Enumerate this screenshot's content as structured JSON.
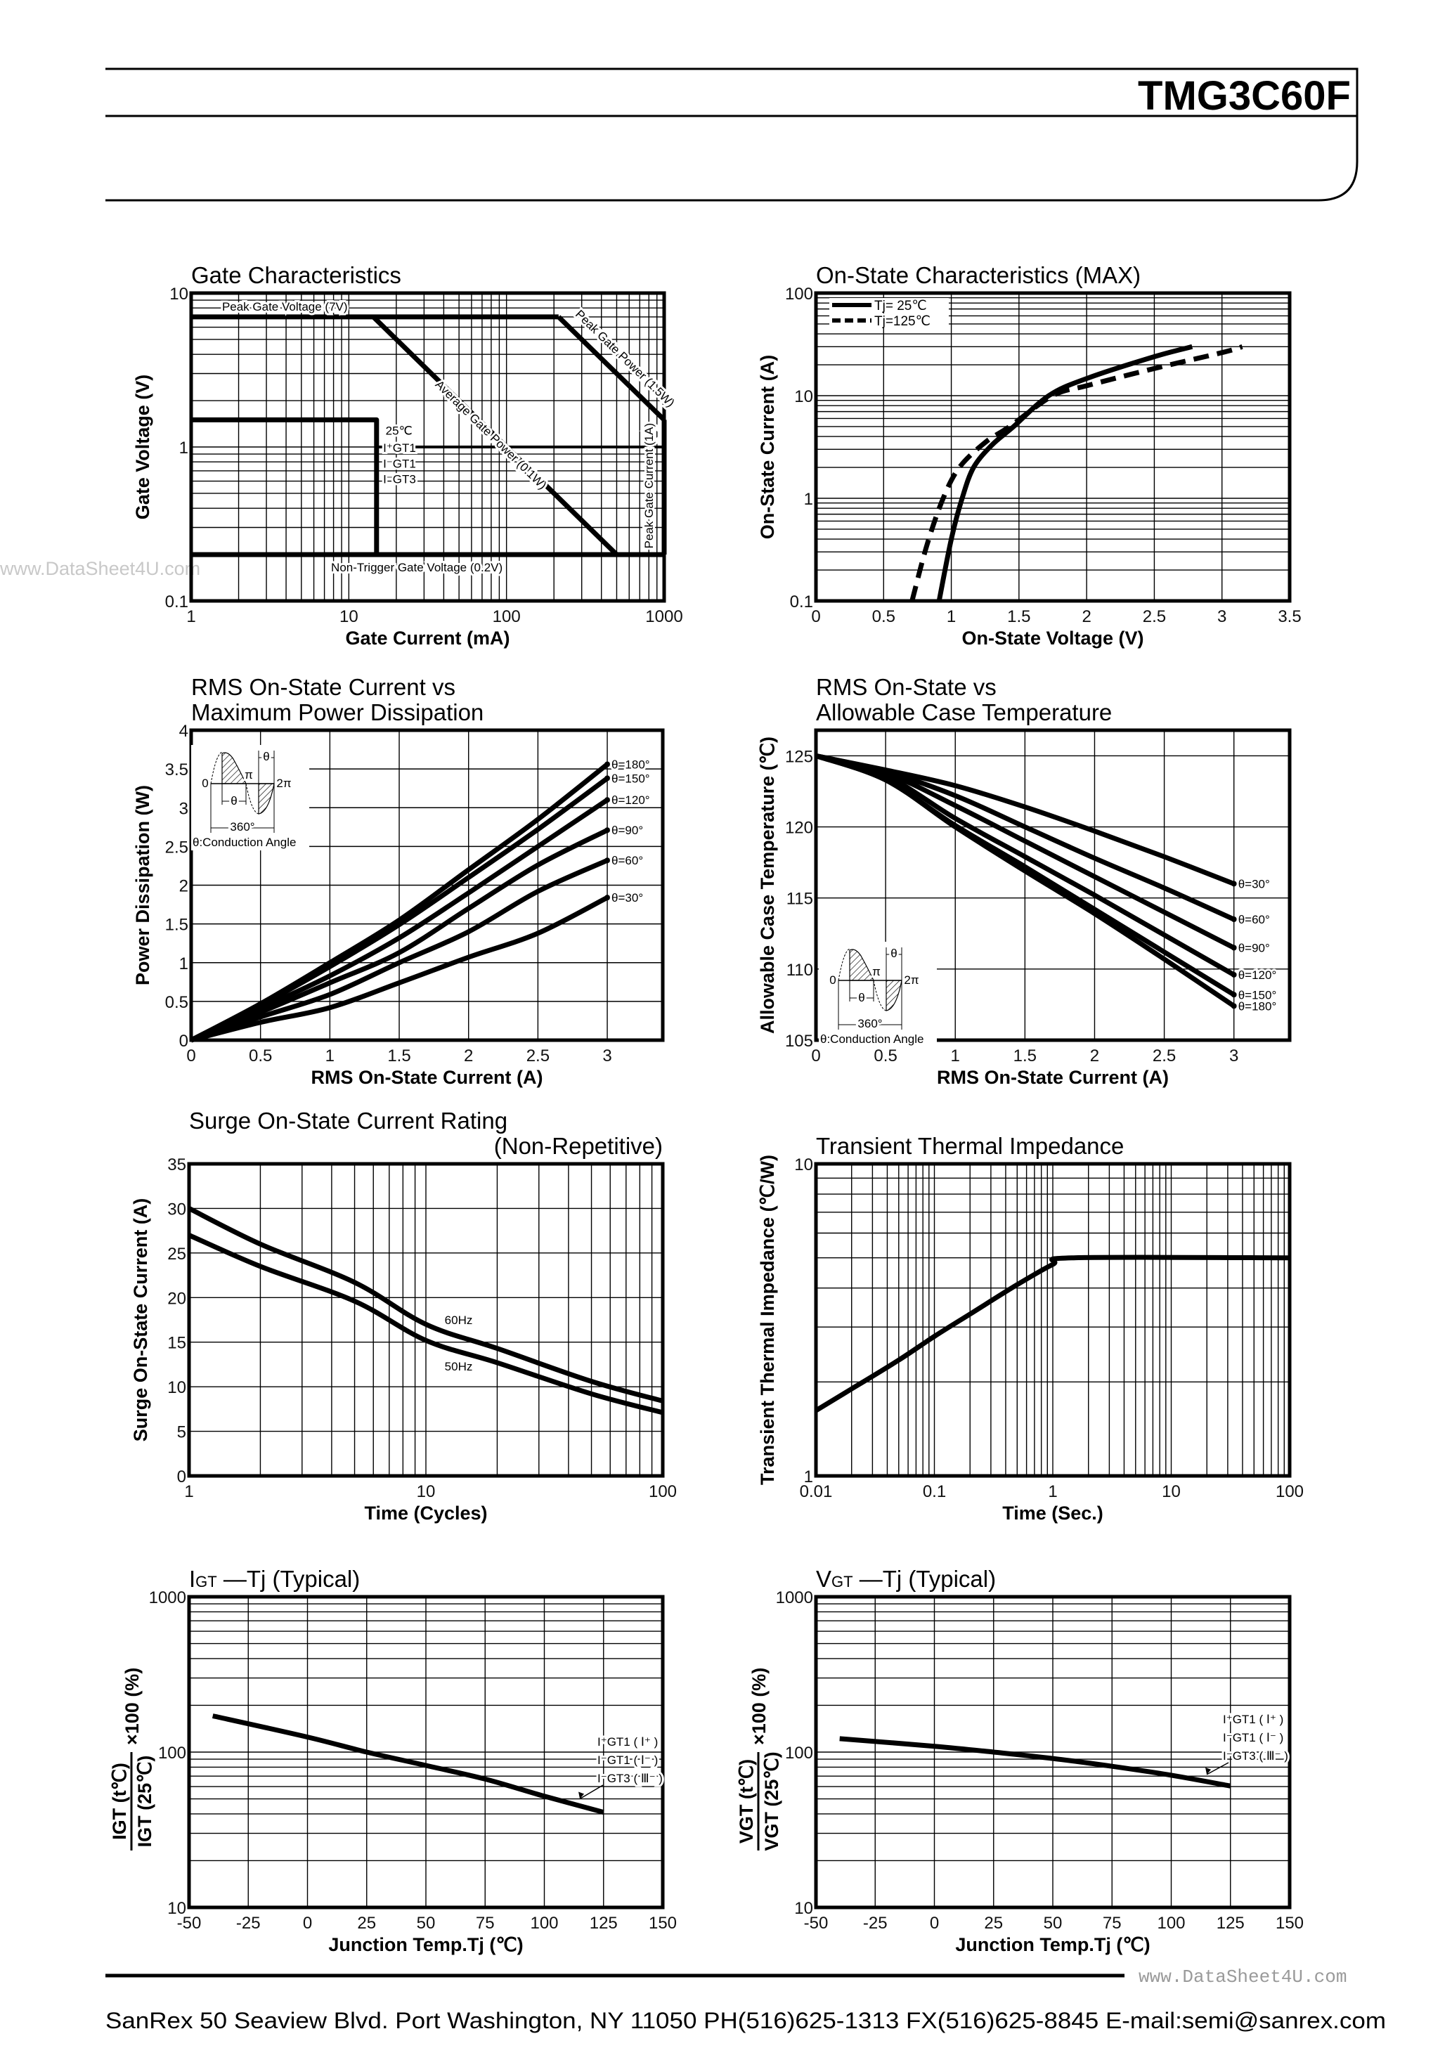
{
  "header": {
    "part_number": "TMG3C60F"
  },
  "watermarks": [
    "www.DataSheet4U.com",
    "www.DataSheet4U.com"
  ],
  "footer": {
    "address": "SanRex 50 Seaview Blvd. Port Washington, NY 11050 PH(516)625-1313 FX(516)625-8845 E-mail:semi@sanrex.com"
  },
  "inset": {
    "zero": "0",
    "pi": "π",
    "two_pi": "2π",
    "theta": "θ",
    "period": "360°",
    "caption": "θ:Conduction Angle"
  },
  "chart_data": [
    {
      "type": "line",
      "title": [
        "Gate Characteristics"
      ],
      "xlabel": "Gate Current (mA)",
      "ylabel": "Gate Voltage (V)",
      "x_scale": "log",
      "y_scale": "log",
      "xlim": [
        1,
        1000
      ],
      "ylim": [
        0.1,
        10
      ],
      "x_ticks": [
        1,
        10,
        100,
        1000
      ],
      "y_ticks": [
        0.1,
        1,
        10
      ],
      "grid": true,
      "series": [
        {
          "name": "Peak Gate Voltage (7V)",
          "style": "solid",
          "x": [
            1,
            214
          ],
          "y": [
            7,
            7
          ]
        },
        {
          "name": "Peak Gate Power (1.5W)",
          "style": "solid",
          "x": [
            214,
            1000
          ],
          "y": [
            7,
            1.5
          ]
        },
        {
          "name": "Peak Gate Current (1A)",
          "style": "solid",
          "x": [
            1000,
            1000
          ],
          "y": [
            1.5,
            0.2
          ]
        },
        {
          "name": "Average Gate Power (0.1W)",
          "style": "solid",
          "x": [
            14.3,
            500
          ],
          "y": [
            7,
            0.2
          ]
        },
        {
          "name": "Non-Trigger Gate Voltage (0.2V)",
          "style": "solid",
          "x": [
            1,
            1000
          ],
          "y": [
            0.2,
            0.2
          ]
        },
        {
          "style": "solid",
          "x": [
            1,
            15,
            15
          ],
          "y": [
            1.5,
            1.5,
            0.2
          ]
        }
      ],
      "annotations": [
        "25℃",
        "I⁺GT1",
        "I⁻GT1",
        "I⁻GT3"
      ]
    },
    {
      "type": "line",
      "title": [
        "On-State Characteristics (MAX)"
      ],
      "xlabel": "On-State Voltage (V)",
      "ylabel": "On-State Current (A)",
      "x_scale": "linear",
      "y_scale": "log",
      "xlim": [
        0,
        3.5
      ],
      "ylim": [
        0.1,
        100
      ],
      "x_ticks": [
        0,
        0.5,
        1,
        1.5,
        2,
        2.5,
        3,
        3.5
      ],
      "y_ticks": [
        0.1,
        1,
        10,
        100
      ],
      "grid": true,
      "legend": "top-left",
      "series": [
        {
          "name": "Tj= 25℃",
          "style": "solid",
          "x": [
            0.91,
            1.0,
            1.08,
            1.165,
            1.3,
            1.46,
            1.72,
            2.0,
            2.5,
            2.78
          ],
          "y": [
            0.1,
            0.4,
            1,
            2,
            3.3,
            5,
            10,
            14.7,
            24,
            30
          ]
        },
        {
          "name": "Tj=125℃",
          "style": "dashed",
          "x": [
            0.71,
            0.82,
            0.94,
            1.06,
            1.25,
            1.43,
            1.75,
            2.0,
            2.5,
            3.0,
            3.15
          ],
          "y": [
            0.1,
            0.35,
            1,
            2,
            3.5,
            5,
            10,
            12.5,
            18.4,
            26.3,
            30
          ]
        }
      ]
    },
    {
      "type": "line",
      "title": [
        "RMS On-State Current vs",
        "Maximum Power Dissipation"
      ],
      "xlabel": "RMS On-State Current (A)",
      "ylabel": "Power Dissipation (W)",
      "x_scale": "linear",
      "y_scale": "linear",
      "xlim": [
        0,
        3.4
      ],
      "ylim": [
        0,
        4
      ],
      "x_ticks": [
        0,
        0.5,
        1,
        1.5,
        2,
        2.5,
        3
      ],
      "y_ticks": [
        0,
        0.5,
        1,
        1.5,
        2,
        2.5,
        3,
        3.5,
        4
      ],
      "grid": true,
      "x": [
        0,
        0.5,
        1,
        1.5,
        2,
        2.5,
        3
      ],
      "series": [
        {
          "name": "θ=180°",
          "style": "solid",
          "values": [
            0,
            0.47,
            1.0,
            1.55,
            2.2,
            2.85,
            3.56
          ]
        },
        {
          "name": "θ=150°",
          "style": "solid",
          "values": [
            0,
            0.45,
            0.95,
            1.49,
            2.1,
            2.72,
            3.38
          ]
        },
        {
          "name": "θ=120°",
          "style": "solid",
          "values": [
            0,
            0.41,
            0.83,
            1.32,
            1.9,
            2.5,
            3.1
          ]
        },
        {
          "name": "θ=90°",
          "style": "solid",
          "values": [
            0,
            0.36,
            0.74,
            1.13,
            1.7,
            2.26,
            2.71
          ]
        },
        {
          "name": "θ=60°",
          "style": "solid",
          "values": [
            0,
            0.3,
            0.59,
            1.0,
            1.4,
            1.92,
            2.32
          ]
        },
        {
          "name": "θ=30°",
          "style": "solid",
          "values": [
            0,
            0.23,
            0.42,
            0.74,
            1.07,
            1.38,
            1.84
          ]
        }
      ]
    },
    {
      "type": "line",
      "title": [
        "RMS On-State vs",
        "Allowable Case Temperature"
      ],
      "xlabel": "RMS On-State Current (A)",
      "ylabel": "Allowable Case Temperature (℃)",
      "x_scale": "linear",
      "y_scale": "linear",
      "xlim": [
        0,
        3.4
      ],
      "ylim": [
        105,
        126.8
      ],
      "x_ticks": [
        0,
        0.5,
        1,
        1.5,
        2,
        2.5,
        3
      ],
      "y_ticks": [
        105,
        110,
        115,
        120,
        125
      ],
      "grid": true,
      "x": [
        0,
        0.5,
        1,
        1.5,
        2,
        2.5,
        3
      ],
      "series": [
        {
          "name": "θ=30°",
          "style": "solid",
          "values": [
            125,
            124.0,
            122.9,
            121.4,
            119.7,
            117.9,
            116.0
          ]
        },
        {
          "name": "θ=60°",
          "style": "solid",
          "values": [
            125,
            123.9,
            122.2,
            120.0,
            117.8,
            115.7,
            113.5
          ]
        },
        {
          "name": "θ=90°",
          "style": "solid",
          "values": [
            125,
            123.8,
            121.5,
            119.0,
            116.5,
            114.0,
            111.5
          ]
        },
        {
          "name": "θ=120°",
          "style": "solid",
          "values": [
            125,
            123.6,
            120.6,
            117.9,
            115.2,
            112.4,
            109.6
          ]
        },
        {
          "name": "θ=150°",
          "style": "solid",
          "values": [
            125,
            123.3,
            120.1,
            117.2,
            114.2,
            111.2,
            108.2
          ]
        },
        {
          "name": "θ=180°",
          "style": "solid",
          "values": [
            125,
            123.3,
            120.0,
            116.9,
            113.9,
            110.7,
            107.4
          ]
        }
      ]
    },
    {
      "type": "line",
      "title": [
        "Surge On-State Current Rating",
        "(Non-Repetitive)"
      ],
      "xlabel": "Time (Cycles)",
      "ylabel": "Surge On-State Current (A)",
      "x_scale": "log",
      "y_scale": "linear",
      "xlim": [
        1,
        100
      ],
      "ylim": [
        0,
        35
      ],
      "x_ticks": [
        1,
        10,
        100
      ],
      "y_ticks": [
        0,
        5,
        10,
        15,
        20,
        25,
        30,
        35
      ],
      "grid": true,
      "x": [
        1,
        2,
        5,
        10,
        20,
        50,
        100
      ],
      "series": [
        {
          "name": "60Hz",
          "style": "solid",
          "values": [
            30,
            26,
            21.7,
            17,
            14.3,
            10.6,
            8.4
          ]
        },
        {
          "name": "50Hz",
          "style": "solid",
          "values": [
            27,
            23.5,
            19.6,
            15.2,
            12.7,
            9.2,
            7.1
          ]
        }
      ]
    },
    {
      "type": "line",
      "title": [
        "Transient Thermal Impedance"
      ],
      "xlabel": "Time (Sec.)",
      "ylabel": "Transient Thermal Impedance (℃/W)",
      "x_scale": "log",
      "y_scale": "log",
      "xlim": [
        0.01,
        100
      ],
      "ylim": [
        1,
        10
      ],
      "x_ticks": [
        0.01,
        0.1,
        1,
        10,
        100
      ],
      "y_ticks": [
        1,
        10
      ],
      "grid": true,
      "series": [
        {
          "style": "solid",
          "x": [
            0.01,
            0.02,
            0.05,
            0.1,
            0.2,
            0.5,
            1,
            1.5,
            100
          ],
          "y": [
            1.62,
            1.9,
            2.35,
            2.8,
            3.3,
            4.1,
            4.76,
            5,
            5
          ]
        }
      ]
    },
    {
      "type": "line",
      "title": [
        "IGT —Tj (Typical)"
      ],
      "xlabel": "Junction Temp.Tj (℃)",
      "ylabel": {
        "numerator": "IGT (t℃)",
        "denominator": "IGT (25℃)",
        "suffix": "×100 (%)"
      },
      "x_scale": "linear",
      "y_scale": "log",
      "xlim": [
        -50,
        150
      ],
      "ylim": [
        10,
        1000
      ],
      "x_ticks": [
        -50,
        -25,
        0,
        25,
        50,
        75,
        100,
        125,
        150
      ],
      "y_ticks": [
        10,
        100,
        1000
      ],
      "grid": true,
      "x": [
        -40,
        0,
        25,
        50,
        75,
        100,
        125
      ],
      "series": [
        {
          "style": "solid",
          "values": [
            171,
            125,
            100,
            82,
            67,
            52,
            41
          ]
        }
      ],
      "annotations": [
        "I⁺GT1 ( Ⅰ⁺ )",
        "I⁻GT1 ( Ⅰ⁻ )",
        "I⁻GT3 ( Ⅲ⁻ )"
      ]
    },
    {
      "type": "line",
      "title": [
        "VGT —Tj (Typical)"
      ],
      "xlabel": "Junction Temp.Tj (℃)",
      "ylabel": {
        "numerator": "VGT (t℃)",
        "denominator": "VGT (25℃)",
        "suffix": "×100 (%)"
      },
      "x_scale": "linear",
      "y_scale": "log",
      "xlim": [
        -50,
        150
      ],
      "ylim": [
        10,
        1000
      ],
      "x_ticks": [
        -50,
        -25,
        0,
        25,
        50,
        75,
        100,
        125,
        150
      ],
      "y_ticks": [
        10,
        100,
        1000
      ],
      "grid": true,
      "x": [
        -40,
        0,
        25,
        50,
        75,
        100,
        125
      ],
      "series": [
        {
          "style": "solid",
          "values": [
            122,
            109,
            100,
            91,
            81,
            71,
            60.5
          ]
        }
      ],
      "annotations": [
        "I⁺GT1 ( Ⅰ⁺ )",
        "I⁻GT1 ( Ⅰ⁻ )",
        "I⁻GT3 ( Ⅲ⁻ )"
      ]
    }
  ]
}
